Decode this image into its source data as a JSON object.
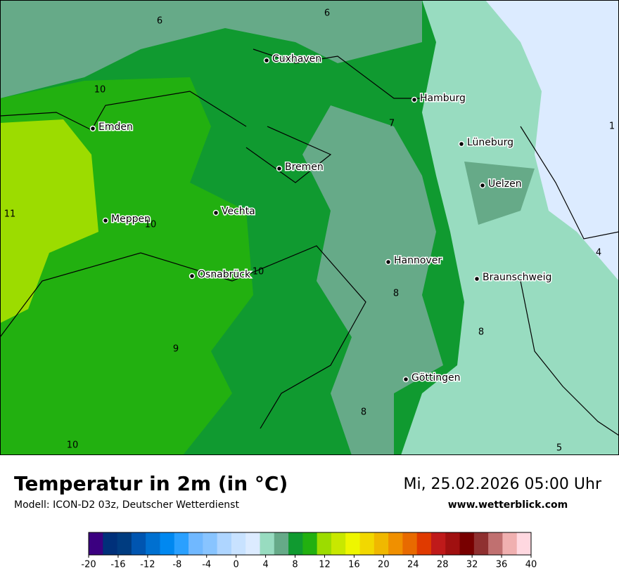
{
  "header": {
    "title": "Temperatur in 2m (in °C)",
    "subtitle": "Modell: ICON-D2 03z, Deutscher Wetterdienst",
    "datetime": "Mi, 25.02.2026 05:00 Uhr",
    "website": "www.wetterblick.com"
  },
  "map": {
    "cities": [
      "Cuxhaven",
      "Hamburg",
      "Emden",
      "Lüneburg",
      "Bremen",
      "Uelzen",
      "Vechta",
      "Meppen",
      "Hannover",
      "Osnabrück",
      "Braunschweig",
      "Göttingen"
    ],
    "contour_labels": [
      6,
      6,
      10,
      7,
      1,
      11,
      10,
      10,
      4,
      8,
      8,
      9,
      8,
      5,
      10
    ]
  },
  "colorbar": {
    "range": [
      -20,
      40
    ],
    "ticks": [
      -20,
      -16,
      -12,
      -8,
      -4,
      0,
      4,
      8,
      12,
      16,
      20,
      24,
      28,
      32,
      36,
      40
    ],
    "colors": [
      "#3b0080",
      "#00307a",
      "#003c80",
      "#0055b0",
      "#0070d0",
      "#0088f0",
      "#2aa0ff",
      "#70b8ff",
      "#88c4ff",
      "#aed5ff",
      "#c8e2ff",
      "#dcebff",
      "#98dcc0",
      "#66aa88",
      "#109a30",
      "#22b010",
      "#9cdc00",
      "#c8e800",
      "#eef600",
      "#f2d800",
      "#f0b800",
      "#f09000",
      "#e86a00",
      "#e03a00",
      "#bf1a1a",
      "#a01010",
      "#780000",
      "#8f3030",
      "#c07070",
      "#f0b0b0",
      "#ffd8e0"
    ]
  }
}
